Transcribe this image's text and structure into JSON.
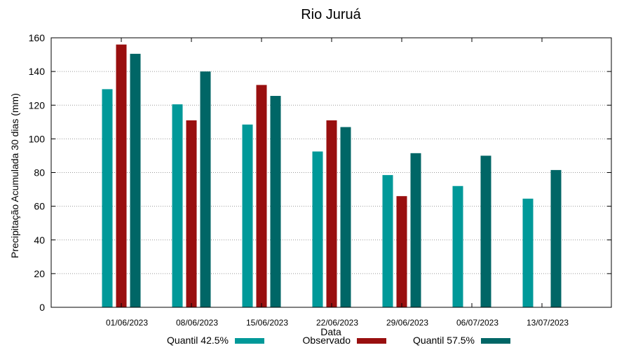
{
  "chart_data": {
    "type": "bar",
    "title": "Rio Juruá",
    "xlabel": "Data",
    "ylabel": "Precipitação Acumulada 30 dias (mm)",
    "ylim": [
      0,
      160
    ],
    "yticks": [
      0,
      20,
      40,
      60,
      80,
      100,
      120,
      140,
      160
    ],
    "grid": true,
    "legend_position": "bottom",
    "categories": [
      "01/06/2023",
      "08/06/2023",
      "15/06/2023",
      "22/06/2023",
      "29/06/2023",
      "06/07/2023",
      "13/07/2023"
    ],
    "series": [
      {
        "name": "Quantil 42.5%",
        "color": "#009999",
        "values": [
          129.5,
          120.5,
          108.5,
          92.5,
          78.5,
          72,
          64.5
        ]
      },
      {
        "name": "Observado",
        "color": "#990f0f",
        "values": [
          156,
          111,
          132,
          111,
          66,
          null,
          null
        ]
      },
      {
        "name": "Quantil 57.5%",
        "color": "#006666",
        "values": [
          150.5,
          140,
          125.5,
          107,
          91.5,
          90,
          81.5
        ]
      }
    ]
  }
}
